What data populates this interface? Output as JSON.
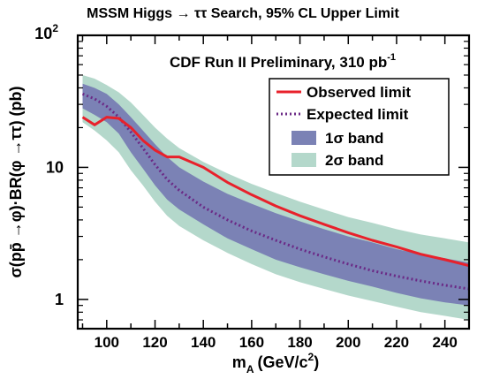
{
  "chart_data": {
    "type": "line",
    "title_prefix": "MSSM Higgs",
    "title_arrow": "→",
    "title_tau": "ττ",
    "title_suffix": "Search, 95% CL Upper Limit",
    "annotation_main": "CDF Run II Preliminary, 310 pb",
    "annotation_sup": "-1",
    "xlabel_m": "m",
    "xlabel_sub": "A",
    "xlabel_units": "(GeV/c",
    "xlabel_units_sup": "2",
    "xlabel_close": ")",
    "ylabel": "σ(pp̄ →φ)·BR(φ →ττ) (pb)",
    "y_scale": "log",
    "xlim": [
      88,
      250
    ],
    "ylim": [
      0.6,
      100
    ],
    "xtick_labels": [
      "100",
      "120",
      "140",
      "160",
      "180",
      "200",
      "220",
      "240"
    ],
    "ytick_labels": [
      "1",
      "10"
    ],
    "ytick_top_base": "10",
    "ytick_top_exp": "2",
    "legend_position": "top-right",
    "legend": [
      "Observed limit",
      "Expected limit",
      "1σ band",
      "2σ band"
    ],
    "colors": {
      "observed": "#e8212b",
      "expected": "#6b2a86",
      "band1": "#7b82b5",
      "band2": "#b4d8cb"
    },
    "mass": [
      90,
      95,
      100,
      105,
      110,
      115,
      120,
      125,
      130,
      140,
      150,
      160,
      170,
      180,
      190,
      200,
      210,
      220,
      230,
      240,
      250
    ],
    "expected": [
      36,
      33,
      29,
      24,
      18.5,
      14,
      10.5,
      8.1,
      6.7,
      5.0,
      4.0,
      3.3,
      2.8,
      2.4,
      2.1,
      1.85,
      1.65,
      1.5,
      1.38,
      1.28,
      1.2
    ],
    "observed": [
      24,
      21,
      24,
      23.5,
      20,
      16,
      13.5,
      12,
      12,
      10,
      7.7,
      6.2,
      5.1,
      4.3,
      3.7,
      3.2,
      2.8,
      2.5,
      2.2,
      2.0,
      1.8
    ],
    "band1_low": [
      28,
      25,
      22,
      18,
      13,
      9.8,
      7.3,
      5.7,
      4.8,
      3.7,
      2.9,
      2.4,
      2.0,
      1.75,
      1.55,
      1.38,
      1.25,
      1.12,
      1.02,
      0.95,
      0.9
    ],
    "band1_high": [
      43,
      40,
      36,
      30,
      24,
      19,
      15,
      12,
      10,
      7.8,
      6.3,
      5.3,
      4.5,
      3.9,
      3.4,
      3.0,
      2.7,
      2.4,
      2.2,
      2.05,
      1.9
    ],
    "band2_low": [
      22,
      19,
      16,
      13,
      9.5,
      7.3,
      5.5,
      4.3,
      3.6,
      2.8,
      2.25,
      1.85,
      1.55,
      1.35,
      1.2,
      1.07,
      0.97,
      0.88,
      0.8,
      0.75,
      0.7
    ],
    "band2_high": [
      50,
      47,
      42,
      37,
      31,
      25,
      20,
      16.5,
      14,
      11,
      9.0,
      7.5,
      6.4,
      5.5,
      4.8,
      4.2,
      3.8,
      3.4,
      3.1,
      2.9,
      2.7
    ]
  }
}
